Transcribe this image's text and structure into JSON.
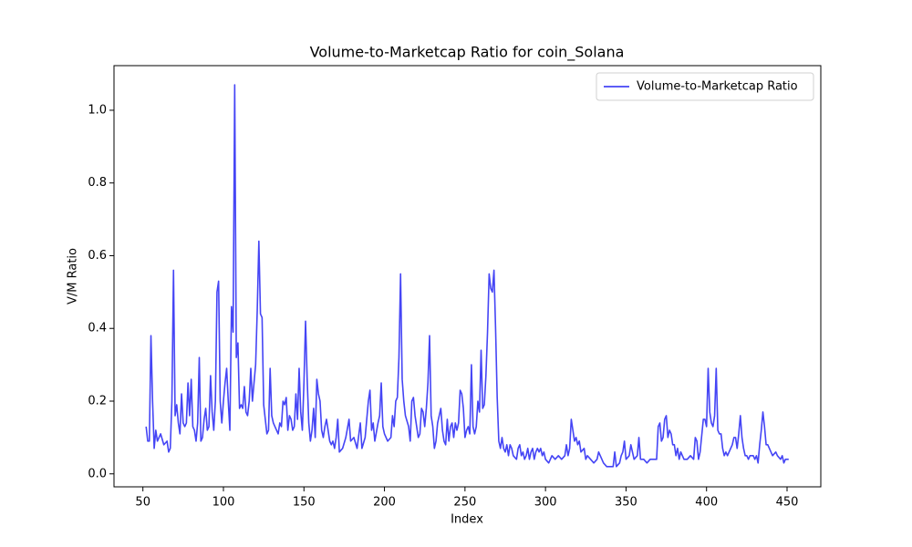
{
  "chart_data": {
    "type": "line",
    "title": "Volume-to-Marketcap Ratio for coin_Solana",
    "xlabel": "Index",
    "ylabel": "V/M Ratio",
    "x": [
      52,
      53,
      54,
      55,
      56,
      57,
      58,
      59,
      60,
      61,
      63,
      65,
      66,
      67,
      68,
      69,
      70,
      71,
      72,
      73,
      74,
      75,
      76,
      77,
      78,
      79,
      80,
      81,
      82,
      83,
      84,
      85,
      86,
      87,
      88,
      89,
      90,
      91,
      92,
      93,
      94,
      95,
      96,
      97,
      98,
      99,
      100,
      101,
      102,
      103,
      104,
      105,
      106,
      107,
      108,
      109,
      110,
      111,
      112,
      113,
      114,
      115,
      116,
      117,
      118,
      119,
      120,
      121,
      122,
      123,
      124,
      125,
      126,
      127,
      128,
      129,
      130,
      131,
      132,
      133,
      134,
      135,
      136,
      137,
      138,
      139,
      140,
      141,
      142,
      143,
      144,
      145,
      146,
      147,
      148,
      149,
      150,
      151,
      152,
      153,
      154,
      155,
      156,
      157,
      158,
      159,
      160,
      161,
      162,
      163,
      164,
      165,
      166,
      167,
      168,
      169,
      170,
      171,
      172,
      174,
      176,
      178,
      179,
      181,
      183,
      185,
      186,
      188,
      190,
      191,
      192,
      193,
      194,
      196,
      197,
      198,
      199,
      200,
      202,
      204,
      205,
      206,
      207,
      208,
      209,
      210,
      211,
      212,
      213,
      215,
      216,
      217,
      218,
      219,
      221,
      222,
      223,
      224,
      225,
      226,
      227,
      228,
      229,
      230,
      231,
      232,
      233,
      235,
      236,
      237,
      238,
      239,
      240,
      241,
      242,
      243,
      244,
      245,
      246,
      247,
      248,
      249,
      250,
      251,
      252,
      253,
      254,
      255,
      256,
      257,
      258,
      259,
      260,
      261,
      262,
      263,
      264,
      265,
      266,
      267,
      268,
      269,
      270,
      271,
      272,
      273,
      274,
      275,
      276,
      277,
      278,
      279,
      280,
      282,
      283,
      284,
      285,
      286,
      287,
      288,
      289,
      290,
      291,
      292,
      293,
      294,
      295,
      296,
      297,
      298,
      299,
      300,
      302,
      304,
      306,
      308,
      310,
      312,
      313,
      314,
      315,
      316,
      317,
      318,
      319,
      320,
      321,
      322,
      324,
      325,
      326,
      328,
      330,
      332,
      333,
      334,
      336,
      338,
      340,
      342,
      343,
      344,
      346,
      347,
      348,
      349,
      350,
      352,
      353,
      354,
      355,
      357,
      358,
      359,
      361,
      363,
      365,
      367,
      369,
      370,
      371,
      372,
      373,
      374,
      375,
      376,
      377,
      378,
      379,
      380,
      381,
      382,
      383,
      384,
      385,
      386,
      388,
      390,
      392,
      393,
      394,
      395,
      396,
      398,
      399,
      400,
      401,
      402,
      403,
      404,
      405,
      406,
      407,
      408,
      409,
      410,
      411,
      412,
      413,
      414,
      415,
      416,
      417,
      418,
      419,
      420,
      421,
      422,
      423,
      424,
      425,
      426,
      427,
      429,
      430,
      431,
      432,
      433,
      434,
      435,
      436,
      437,
      438,
      439,
      440,
      441,
      443,
      444,
      446,
      447,
      448,
      449,
      451
    ],
    "series": [
      {
        "name": "Volume-to-Marketcap Ratio",
        "color": "#4545f5",
        "values": [
          0.13,
          0.09,
          0.09,
          0.38,
          0.2,
          0.07,
          0.12,
          0.09,
          0.1,
          0.11,
          0.08,
          0.09,
          0.06,
          0.07,
          0.2,
          0.56,
          0.16,
          0.19,
          0.14,
          0.11,
          0.22,
          0.14,
          0.13,
          0.14,
          0.25,
          0.16,
          0.26,
          0.13,
          0.12,
          0.09,
          0.14,
          0.32,
          0.09,
          0.1,
          0.15,
          0.18,
          0.12,
          0.13,
          0.27,
          0.17,
          0.12,
          0.2,
          0.5,
          0.53,
          0.2,
          0.14,
          0.2,
          0.25,
          0.29,
          0.2,
          0.12,
          0.46,
          0.39,
          1.07,
          0.32,
          0.36,
          0.18,
          0.19,
          0.18,
          0.24,
          0.17,
          0.16,
          0.2,
          0.29,
          0.2,
          0.25,
          0.3,
          0.45,
          0.64,
          0.44,
          0.43,
          0.19,
          0.15,
          0.11,
          0.12,
          0.29,
          0.16,
          0.14,
          0.13,
          0.12,
          0.11,
          0.14,
          0.13,
          0.2,
          0.19,
          0.21,
          0.12,
          0.16,
          0.15,
          0.12,
          0.13,
          0.22,
          0.15,
          0.29,
          0.17,
          0.12,
          0.25,
          0.42,
          0.26,
          0.14,
          0.09,
          0.12,
          0.18,
          0.1,
          0.26,
          0.22,
          0.2,
          0.12,
          0.1,
          0.13,
          0.15,
          0.12,
          0.09,
          0.08,
          0.09,
          0.07,
          0.1,
          0.15,
          0.06,
          0.07,
          0.1,
          0.15,
          0.09,
          0.1,
          0.07,
          0.14,
          0.07,
          0.1,
          0.2,
          0.23,
          0.12,
          0.14,
          0.09,
          0.14,
          0.16,
          0.25,
          0.13,
          0.11,
          0.09,
          0.1,
          0.16,
          0.13,
          0.2,
          0.21,
          0.32,
          0.55,
          0.26,
          0.2,
          0.16,
          0.13,
          0.09,
          0.2,
          0.21,
          0.16,
          0.1,
          0.11,
          0.18,
          0.17,
          0.13,
          0.18,
          0.25,
          0.38,
          0.16,
          0.13,
          0.07,
          0.09,
          0.14,
          0.18,
          0.12,
          0.09,
          0.08,
          0.15,
          0.09,
          0.13,
          0.14,
          0.1,
          0.14,
          0.12,
          0.14,
          0.23,
          0.22,
          0.18,
          0.1,
          0.12,
          0.13,
          0.11,
          0.3,
          0.13,
          0.11,
          0.13,
          0.2,
          0.17,
          0.34,
          0.18,
          0.19,
          0.27,
          0.39,
          0.55,
          0.51,
          0.5,
          0.56,
          0.4,
          0.21,
          0.09,
          0.07,
          0.1,
          0.07,
          0.06,
          0.08,
          0.05,
          0.08,
          0.07,
          0.05,
          0.04,
          0.07,
          0.08,
          0.05,
          0.06,
          0.04,
          0.05,
          0.07,
          0.04,
          0.06,
          0.07,
          0.04,
          0.06,
          0.07,
          0.06,
          0.07,
          0.05,
          0.06,
          0.04,
          0.03,
          0.05,
          0.04,
          0.05,
          0.04,
          0.05,
          0.08,
          0.05,
          0.07,
          0.15,
          0.12,
          0.09,
          0.1,
          0.08,
          0.09,
          0.06,
          0.07,
          0.04,
          0.05,
          0.04,
          0.03,
          0.04,
          0.06,
          0.05,
          0.03,
          0.02,
          0.02,
          0.02,
          0.06,
          0.02,
          0.03,
          0.05,
          0.06,
          0.09,
          0.04,
          0.05,
          0.08,
          0.06,
          0.04,
          0.05,
          0.1,
          0.04,
          0.04,
          0.03,
          0.04,
          0.04,
          0.04,
          0.13,
          0.14,
          0.09,
          0.1,
          0.15,
          0.16,
          0.1,
          0.12,
          0.11,
          0.08,
          0.08,
          0.05,
          0.07,
          0.04,
          0.06,
          0.05,
          0.04,
          0.04,
          0.05,
          0.04,
          0.1,
          0.09,
          0.04,
          0.06,
          0.15,
          0.15,
          0.13,
          0.29,
          0.17,
          0.14,
          0.13,
          0.16,
          0.29,
          0.12,
          0.11,
          0.11,
          0.07,
          0.05,
          0.06,
          0.05,
          0.06,
          0.07,
          0.08,
          0.1,
          0.1,
          0.07,
          0.11,
          0.16,
          0.1,
          0.07,
          0.05,
          0.05,
          0.04,
          0.05,
          0.05,
          0.04,
          0.05,
          0.03,
          0.08,
          0.12,
          0.17,
          0.13,
          0.08,
          0.08,
          0.07,
          0.06,
          0.05,
          0.06,
          0.05,
          0.04,
          0.05,
          0.03,
          0.04,
          0.04
        ]
      }
    ],
    "xlim": [
      32.05,
      470.95
    ],
    "ylim": [
      -0.0357,
      1.1227
    ],
    "xticks": [
      50,
      100,
      150,
      200,
      250,
      300,
      350,
      400,
      450
    ],
    "yticks": [
      {
        "value": 0,
        "label": "0.0"
      },
      0.2,
      0.4,
      0.6,
      0.8,
      {
        "value": 1,
        "label": "1.0"
      }
    ],
    "legend": "upper right",
    "grid": false
  }
}
